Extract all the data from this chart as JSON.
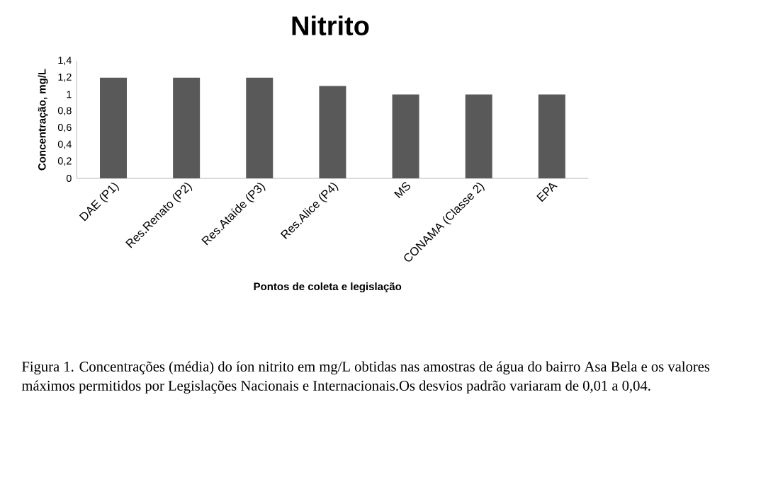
{
  "chart_data": {
    "type": "bar",
    "title": "Nitrito",
    "xlabel": "Pontos de coleta e legislação",
    "ylabel": "Concentração, mg/L",
    "categories": [
      "DAE (P1)",
      "Res.Renato (P2)",
      "Res.Ataíde (P3)",
      "Res.Alice (P4)",
      "MS",
      "CONAMA (Classe 2)",
      "EPA"
    ],
    "values": [
      1.2,
      1.2,
      1.2,
      1.1,
      1.0,
      1.0,
      1.0
    ],
    "color": "#595959",
    "ylim": [
      0,
      1.4
    ],
    "yticks": [
      0,
      {
        "value": 0.2,
        "label": "0,2"
      },
      {
        "value": 0.4,
        "label": "0,4"
      },
      {
        "value": 0.6,
        "label": "0,6"
      },
      {
        "value": 0.8,
        "label": "0,8"
      },
      1,
      {
        "value": 1.2,
        "label": "1,2"
      },
      {
        "value": 1.4,
        "label": "1,4"
      }
    ],
    "grid": false,
    "annotations": [
      "Figura 1. Concentrações (média) do íon nitrito em mg/L obtidas nas amostras de água do bairro Asa Bela e os valores máximos permitidos por Legislações Nacionais e Internacionais.Os desvios padrão variaram de 0,01 a 0,04."
    ]
  }
}
